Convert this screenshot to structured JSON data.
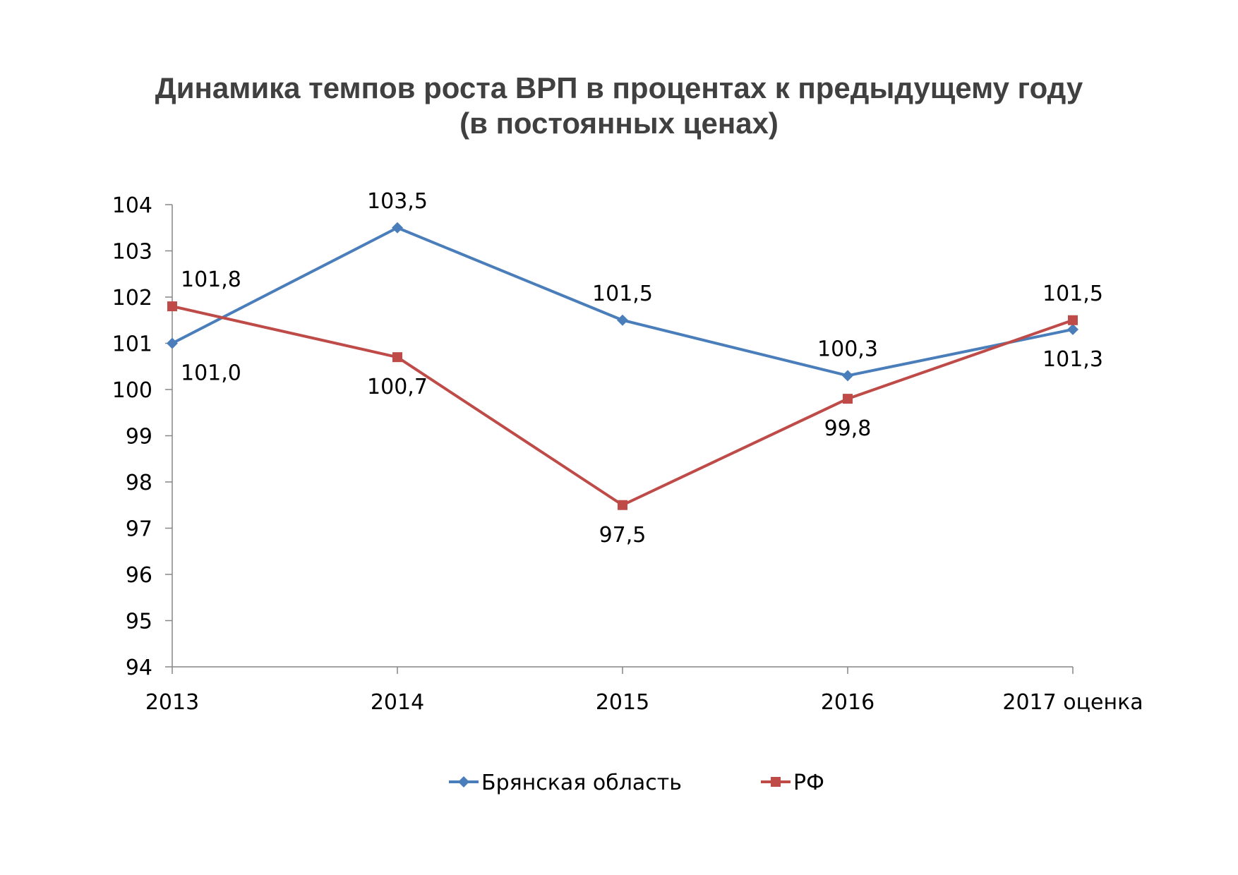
{
  "chart_data": {
    "type": "line",
    "title_line1": "Динамика темпов роста ВРП в процентах к предыдущему году",
    "title_line2": "(в постоянных ценах)",
    "categories": [
      "2013",
      "2014",
      "2015",
      "2016",
      "2017 оценка"
    ],
    "ylim": [
      94,
      104
    ],
    "yticks": [
      94,
      95,
      96,
      97,
      98,
      99,
      100,
      101,
      102,
      103,
      104
    ],
    "grid": false,
    "legend_position": "bottom",
    "series": [
      {
        "name": "Брянская область",
        "color": "#4a7ebb",
        "marker": "diamond",
        "values": [
          101.0,
          103.5,
          101.5,
          100.3,
          101.3
        ],
        "labels": [
          "101,0",
          "103,5",
          "101,5",
          "100,3",
          "101,3"
        ],
        "label_positions": [
          "below",
          "above",
          "above",
          "above",
          "below"
        ]
      },
      {
        "name": "РФ",
        "color": "#be4b48",
        "marker": "square",
        "values": [
          101.8,
          100.7,
          97.5,
          99.8,
          101.5
        ],
        "labels": [
          "101,8",
          "100,7",
          "97,5",
          "99,8",
          "101,5"
        ],
        "label_positions": [
          "above",
          "below",
          "below",
          "below",
          "above"
        ]
      }
    ]
  }
}
